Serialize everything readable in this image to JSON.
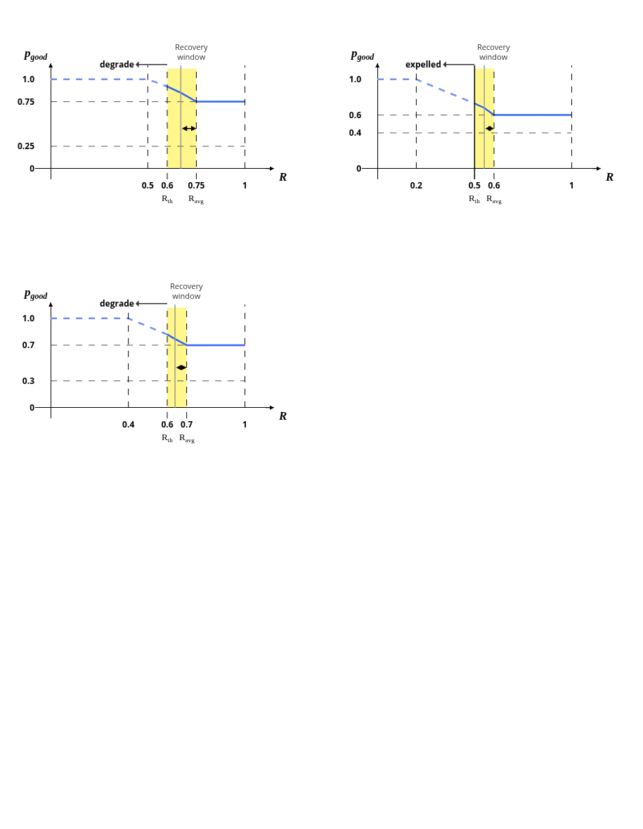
{
  "chart_data": [
    {
      "type": "line",
      "xlabel": "R",
      "ylabel": "p$_{good}$",
      "xlim": [
        -0.08,
        1.15
      ],
      "ylim": [
        -0.12,
        1.18
      ],
      "xticks": [
        0.5,
        0.6,
        0.75,
        1.0
      ],
      "yticks": [
        {
          "value": 0,
          "label": "0"
        },
        {
          "value": 0.25,
          "label": "0.25"
        },
        {
          "value": 0.75,
          "label": "0.75"
        },
        {
          "value": 1.0,
          "label": "1.0"
        }
      ],
      "series": [
        {
          "x": [
            0,
            0.5,
            0.6
          ],
          "values": [
            1.0,
            1.0,
            0.92
          ],
          "color": "#7090f0",
          "line_style": "dashed"
        },
        {
          "x": [
            0.6,
            0.67,
            0.75,
            1.0
          ],
          "values": [
            0.92,
            0.85,
            0.75,
            0.75
          ],
          "color": "#3366ee",
          "line_style": "solid"
        }
      ],
      "ref_lines": [
        {
          "axis": "x",
          "value": 0.5,
          "color": "#000000",
          "line_style": "dashed"
        },
        {
          "axis": "x",
          "value": 0.6,
          "label": "R$_{th}$",
          "color": "#000000",
          "line_style": "dashed"
        },
        {
          "axis": "x",
          "value": 0.75,
          "label": "R$_{avg}$",
          "color": "#000000",
          "line_style": "dashed"
        },
        {
          "axis": "x",
          "value": 1.0,
          "color": "#000000",
          "line_style": "dashed"
        },
        {
          "axis": "x",
          "value": 0.67,
          "color": "#999999",
          "line_style": "solid"
        },
        {
          "axis": "y",
          "value": 0.75,
          "color": "#555555",
          "line_style": "dashed"
        },
        {
          "axis": "y",
          "value": 0.25,
          "color": "#555555",
          "line_style": "dashed"
        }
      ],
      "bands": [
        {
          "axis": "x",
          "from": 0.6,
          "to": 0.75,
          "label": "Recovery window",
          "color": "#ffee00"
        }
      ],
      "annotations": [
        "degrade"
      ]
    },
    {
      "type": "line",
      "xlabel": "R",
      "ylabel": "p$_{good}$",
      "xlim": [
        -0.08,
        1.15
      ],
      "ylim": [
        -0.12,
        1.18
      ],
      "xticks": [
        0.2,
        0.5,
        0.6,
        1.0
      ],
      "yticks": [
        {
          "value": 0,
          "label": "0"
        },
        {
          "value": 0.4,
          "label": "0.4"
        },
        {
          "value": 0.6,
          "label": "0.6"
        },
        {
          "value": 1.0,
          "label": "1.0"
        }
      ],
      "series": [
        {
          "x": [
            0,
            0.2,
            0.5
          ],
          "values": [
            1.0,
            1.0,
            0.73
          ],
          "color": "#7090f0",
          "line_style": "dashed"
        },
        {
          "x": [
            0.5,
            0.55,
            0.6,
            1.0
          ],
          "values": [
            0.73,
            0.68,
            0.6,
            0.6
          ],
          "color": "#3366ee",
          "line_style": "solid"
        }
      ],
      "ref_lines": [
        {
          "axis": "x",
          "value": 0.2,
          "color": "#000000",
          "line_style": "dashed"
        },
        {
          "axis": "x",
          "value": 0.5,
          "label": "R$_{th}$",
          "color": "#000000",
          "line_style": "solid"
        },
        {
          "axis": "x",
          "value": 0.6,
          "label": "R$_{avg}$",
          "color": "#000000",
          "line_style": "dashed"
        },
        {
          "axis": "x",
          "value": 1.0,
          "color": "#000000",
          "line_style": "dashed"
        },
        {
          "axis": "x",
          "value": 0.55,
          "color": "#999999",
          "line_style": "solid"
        },
        {
          "axis": "y",
          "value": 0.6,
          "color": "#555555",
          "line_style": "dashed"
        },
        {
          "axis": "y",
          "value": 0.4,
          "color": "#555555",
          "line_style": "dashed"
        }
      ],
      "bands": [
        {
          "axis": "x",
          "from": 0.5,
          "to": 0.6,
          "label": "Recovery window",
          "color": "#ffee00"
        }
      ],
      "annotations": [
        "expelled"
      ]
    },
    {
      "type": "line",
      "xlabel": "R",
      "ylabel": "p$_{good}$",
      "xlim": [
        -0.08,
        1.15
      ],
      "ylim": [
        -0.12,
        1.18
      ],
      "xticks": [
        0.4,
        0.6,
        0.7,
        1.0
      ],
      "yticks": [
        {
          "value": 0,
          "label": "0"
        },
        {
          "value": 0.3,
          "label": "0.3"
        },
        {
          "value": 0.7,
          "label": "0.7"
        },
        {
          "value": 1.0,
          "label": "1.0"
        }
      ],
      "series": [
        {
          "x": [
            0,
            0.4,
            0.6
          ],
          "values": [
            1.0,
            1.0,
            0.82
          ],
          "color": "#7090f0",
          "line_style": "dashed"
        },
        {
          "x": [
            0.6,
            0.64,
            0.7,
            1.0
          ],
          "values": [
            0.82,
            0.77,
            0.7,
            0.7
          ],
          "color": "#3366ee",
          "line_style": "solid"
        }
      ],
      "ref_lines": [
        {
          "axis": "x",
          "value": 0.4,
          "color": "#000000",
          "line_style": "dashed"
        },
        {
          "axis": "x",
          "value": 0.6,
          "label": "R$_{th}$",
          "color": "#000000",
          "line_style": "dashed"
        },
        {
          "axis": "x",
          "value": 0.7,
          "label": "R$_{avg}$",
          "color": "#000000",
          "line_style": "dashed"
        },
        {
          "axis": "x",
          "value": 1.0,
          "color": "#000000",
          "line_style": "dashed"
        },
        {
          "axis": "x",
          "value": 0.64,
          "color": "#999999",
          "line_style": "solid"
        },
        {
          "axis": "y",
          "value": 0.7,
          "color": "#555555",
          "line_style": "dashed"
        },
        {
          "axis": "y",
          "value": 0.3,
          "color": "#555555",
          "line_style": "dashed"
        }
      ],
      "bands": [
        {
          "axis": "x",
          "from": 0.6,
          "to": 0.7,
          "label": "Recovery window",
          "color": "#ffee00"
        }
      ],
      "annotations": [
        "degrade"
      ]
    }
  ]
}
